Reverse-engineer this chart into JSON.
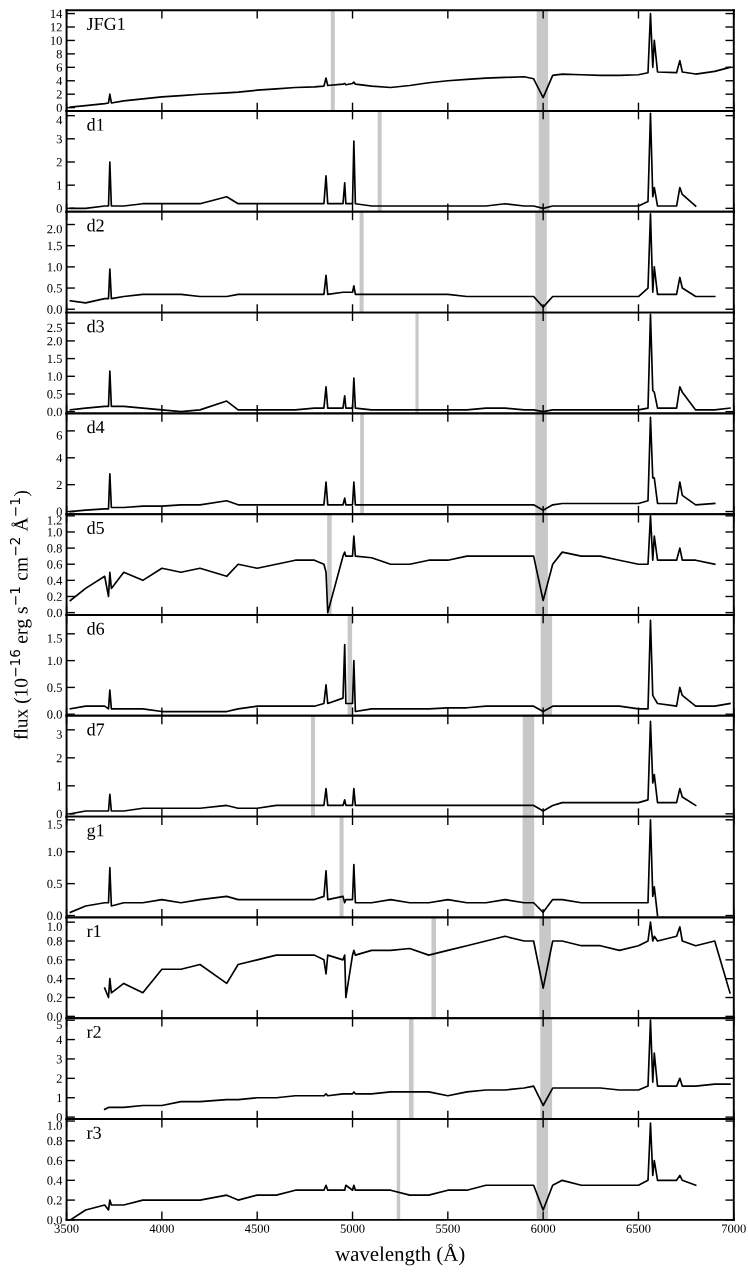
{
  "chart_data": [
    {
      "type": "line",
      "title": "JFG1",
      "xlim": [
        3500,
        7000
      ],
      "xticks": [
        3500,
        4000,
        4500,
        5000,
        5500,
        6000,
        6500,
        7000
      ],
      "ylim": [
        -0.5,
        14.5
      ],
      "yticks": [
        0,
        2,
        4,
        6,
        8,
        10,
        12,
        14
      ],
      "tick_labels": "y",
      "bands": [
        {
          "axis": "x",
          "from": 4886,
          "to": 4907,
          "color": "#c8c8c8"
        },
        {
          "axis": "x",
          "from": 5966,
          "to": 6026,
          "color": "#c8c8c8"
        }
      ],
      "x": [
        3520,
        3600,
        3700,
        3720,
        3727,
        3735,
        3800,
        3900,
        4000,
        4100,
        4200,
        4340,
        4400,
        4500,
        4600,
        4700,
        4800,
        4850,
        4861,
        4870,
        4950,
        4959,
        4965,
        5000,
        5007,
        5015,
        5100,
        5200,
        5300,
        5400,
        5500,
        5600,
        5700,
        5800,
        5900,
        5950,
        6000,
        6050,
        6100,
        6200,
        6300,
        6400,
        6500,
        6550,
        6563,
        6575,
        6583,
        6600,
        6700,
        6717,
        6730,
        6800,
        6900,
        6980
      ],
      "series": [
        {
          "color": "#000000",
          "values": [
            0.1,
            0.3,
            0.6,
            0.7,
            2.0,
            0.7,
            1.0,
            1.3,
            1.6,
            1.8,
            2.0,
            2.2,
            2.3,
            2.6,
            2.8,
            3.0,
            3.1,
            3.2,
            4.4,
            3.3,
            3.5,
            3.6,
            3.4,
            3.6,
            3.8,
            3.5,
            3.2,
            3.0,
            3.3,
            3.7,
            4.0,
            4.2,
            4.4,
            4.5,
            4.6,
            4.3,
            1.5,
            4.8,
            5.0,
            4.9,
            4.8,
            4.8,
            4.9,
            5.2,
            14.0,
            6.0,
            10.0,
            5.3,
            5.2,
            7.0,
            5.3,
            5.0,
            5.4,
            6.0
          ]
        }
      ]
    },
    {
      "type": "line",
      "title": "d1",
      "xlim": [
        3500,
        7000
      ],
      "xticks": [
        3500,
        4000,
        4500,
        5000,
        5500,
        6000,
        6500,
        7000
      ],
      "ylim": [
        -0.15,
        4.2
      ],
      "yticks": [
        0,
        1,
        2,
        3,
        4
      ],
      "tick_labels": "y",
      "bands": [
        {
          "axis": "x",
          "from": 5132,
          "to": 5153,
          "color": "#c8c8c8"
        },
        {
          "axis": "x",
          "from": 5977,
          "to": 6033,
          "color": "#c8c8c8"
        }
      ],
      "x": [
        3520,
        3600,
        3700,
        3720,
        3727,
        3735,
        3800,
        3900,
        4000,
        4100,
        4200,
        4340,
        4400,
        4500,
        4600,
        4700,
        4800,
        4850,
        4861,
        4870,
        4950,
        4959,
        4965,
        5000,
        5007,
        5015,
        5100,
        5200,
        5300,
        5400,
        5500,
        5600,
        5700,
        5800,
        5900,
        5950,
        6000,
        6050,
        6100,
        6200,
        6300,
        6400,
        6500,
        6550,
        6563,
        6575,
        6583,
        6600,
        6700,
        6717,
        6730,
        6800
      ],
      "series": [
        {
          "color": "#000000",
          "values": [
            0.0,
            0.0,
            0.1,
            0.1,
            2.0,
            0.1,
            0.1,
            0.2,
            0.2,
            0.2,
            0.2,
            0.5,
            0.2,
            0.2,
            0.2,
            0.2,
            0.2,
            0.2,
            1.4,
            0.2,
            0.2,
            1.1,
            0.2,
            0.2,
            2.9,
            0.2,
            0.1,
            0.1,
            0.1,
            0.1,
            0.1,
            0.1,
            0.1,
            0.2,
            0.1,
            0.1,
            0.0,
            0.1,
            0.1,
            0.1,
            0.1,
            0.1,
            0.1,
            0.3,
            4.1,
            0.5,
            0.9,
            0.1,
            0.1,
            0.9,
            0.6,
            0.1
          ]
        }
      ]
    },
    {
      "type": "line",
      "title": "d2",
      "xlim": [
        3500,
        7000
      ],
      "xticks": [
        3500,
        4000,
        4500,
        5000,
        5500,
        6000,
        6500,
        7000
      ],
      "ylim": [
        -0.08,
        2.3
      ],
      "yticks": [
        {
          "value": 0,
          "label": "0.0"
        },
        0.5,
        {
          "value": 1,
          "label": "1.0"
        },
        1.5,
        {
          "value": 2,
          "label": "2.0"
        }
      ],
      "tick_labels": "y",
      "bands": [
        {
          "axis": "x",
          "from": 5037,
          "to": 5058,
          "color": "#c8c8c8"
        },
        {
          "axis": "x",
          "from": 5959,
          "to": 6019,
          "color": "#c8c8c8"
        }
      ],
      "x": [
        3520,
        3600,
        3700,
        3720,
        3727,
        3735,
        3800,
        3900,
        4000,
        4100,
        4200,
        4340,
        4400,
        4500,
        4600,
        4700,
        4800,
        4850,
        4861,
        4870,
        4950,
        4959,
        4965,
        5000,
        5007,
        5015,
        5100,
        5200,
        5300,
        5400,
        5500,
        5600,
        5700,
        5800,
        5900,
        5950,
        6000,
        6050,
        6100,
        6200,
        6300,
        6400,
        6500,
        6550,
        6563,
        6575,
        6583,
        6600,
        6700,
        6717,
        6730,
        6800,
        6900
      ],
      "series": [
        {
          "color": "#000000",
          "values": [
            0.2,
            0.15,
            0.25,
            0.25,
            0.95,
            0.25,
            0.3,
            0.35,
            0.35,
            0.35,
            0.3,
            0.3,
            0.35,
            0.35,
            0.35,
            0.35,
            0.35,
            0.35,
            0.8,
            0.35,
            0.4,
            0.4,
            0.4,
            0.4,
            0.55,
            0.35,
            0.35,
            0.35,
            0.35,
            0.35,
            0.35,
            0.3,
            0.3,
            0.3,
            0.3,
            0.3,
            0.05,
            0.3,
            0.3,
            0.3,
            0.3,
            0.3,
            0.3,
            0.5,
            2.25,
            0.4,
            1.0,
            0.35,
            0.35,
            0.75,
            0.5,
            0.3,
            0.3
          ]
        }
      ]
    },
    {
      "type": "line",
      "title": "d3",
      "xlim": [
        3500,
        7000
      ],
      "xticks": [
        3500,
        4000,
        4500,
        5000,
        5500,
        6000,
        6500,
        7000
      ],
      "ylim": [
        -0.05,
        2.8
      ],
      "yticks": [
        {
          "value": 0,
          "label": "0.0"
        },
        0.5,
        {
          "value": 1,
          "label": "1.0"
        },
        1.5,
        {
          "value": 2,
          "label": "2.0"
        },
        2.5
      ],
      "tick_labels": "y",
      "bands": [
        {
          "axis": "x",
          "from": 5330,
          "to": 5347,
          "color": "#c8c8c8"
        },
        {
          "axis": "x",
          "from": 5959,
          "to": 6019,
          "color": "#c8c8c8"
        }
      ],
      "x": [
        3520,
        3600,
        3700,
        3720,
        3727,
        3735,
        3800,
        3900,
        4000,
        4100,
        4200,
        4340,
        4400,
        4500,
        4600,
        4700,
        4800,
        4850,
        4861,
        4870,
        4950,
        4959,
        4965,
        5000,
        5007,
        5015,
        5100,
        5200,
        5300,
        5400,
        5500,
        5600,
        5700,
        5800,
        5900,
        5950,
        6000,
        6050,
        6100,
        6200,
        6300,
        6400,
        6500,
        6550,
        6563,
        6575,
        6583,
        6600,
        6700,
        6717,
        6730,
        6800,
        6900,
        6980
      ],
      "series": [
        {
          "color": "#000000",
          "values": [
            0.05,
            0.1,
            0.15,
            0.15,
            1.15,
            0.15,
            0.15,
            0.1,
            0.05,
            0.0,
            0.05,
            0.3,
            0.05,
            0.05,
            0.05,
            0.05,
            0.1,
            0.1,
            0.7,
            0.1,
            0.1,
            0.45,
            0.1,
            0.1,
            0.95,
            0.1,
            0.05,
            0.05,
            0.05,
            0.05,
            0.05,
            0.05,
            0.1,
            0.1,
            0.05,
            0.05,
            0.0,
            0.05,
            0.05,
            0.05,
            0.05,
            0.05,
            0.05,
            0.1,
            2.75,
            0.6,
            0.55,
            0.1,
            0.1,
            0.7,
            0.55,
            0.05,
            0.05,
            0.1
          ]
        }
      ]
    },
    {
      "type": "line",
      "title": "d4",
      "xlim": [
        3500,
        7000
      ],
      "xticks": [
        3500,
        4000,
        4500,
        5000,
        5500,
        6000,
        6500,
        7000
      ],
      "ylim": [
        -0.2,
        7.3
      ],
      "yticks": [
        0,
        2,
        4,
        6
      ],
      "tick_labels": "y",
      "bands": [
        {
          "axis": "x",
          "from": 5040,
          "to": 5060,
          "color": "#c8c8c8"
        },
        {
          "axis": "x",
          "from": 5959,
          "to": 6019,
          "color": "#c8c8c8"
        }
      ],
      "x": [
        3520,
        3600,
        3700,
        3720,
        3727,
        3735,
        3800,
        3900,
        4000,
        4100,
        4200,
        4340,
        4400,
        4500,
        4600,
        4700,
        4800,
        4850,
        4861,
        4870,
        4950,
        4959,
        4965,
        5000,
        5007,
        5015,
        5100,
        5200,
        5300,
        5400,
        5500,
        5600,
        5700,
        5800,
        5900,
        5950,
        6000,
        6050,
        6100,
        6200,
        6300,
        6400,
        6500,
        6550,
        6563,
        6575,
        6583,
        6600,
        6700,
        6717,
        6730,
        6800,
        6900
      ],
      "series": [
        {
          "color": "#000000",
          "values": [
            0.0,
            0.1,
            0.2,
            0.2,
            2.8,
            0.3,
            0.3,
            0.4,
            0.4,
            0.5,
            0.5,
            0.8,
            0.5,
            0.5,
            0.5,
            0.5,
            0.5,
            0.5,
            2.2,
            0.5,
            0.5,
            1.0,
            0.5,
            0.5,
            2.2,
            0.5,
            0.5,
            0.5,
            0.5,
            0.5,
            0.5,
            0.5,
            0.5,
            0.5,
            0.5,
            0.5,
            0.1,
            0.5,
            0.6,
            0.6,
            0.6,
            0.6,
            0.6,
            0.8,
            7.0,
            2.5,
            2.5,
            0.6,
            0.6,
            2.2,
            1.2,
            0.5,
            0.6
          ]
        }
      ]
    },
    {
      "type": "line",
      "title": "d5",
      "xlim": [
        3500,
        7000
      ],
      "xticks": [
        3500,
        4000,
        4500,
        5000,
        5500,
        6000,
        6500,
        7000
      ],
      "ylim": [
        -0.03,
        1.22
      ],
      "yticks": [
        {
          "value": 0,
          "label": "0.0"
        },
        0.2,
        0.4,
        0.6,
        0.8,
        {
          "value": 1,
          "label": "1.0"
        },
        1.2
      ],
      "tick_labels": "y",
      "bands": [
        {
          "axis": "x",
          "from": 4867,
          "to": 4891,
          "color": "#c8c8c8"
        },
        {
          "axis": "x",
          "from": 5959,
          "to": 6025,
          "color": "#c8c8c8"
        }
      ],
      "x": [
        3520,
        3600,
        3700,
        3720,
        3727,
        3735,
        3800,
        3900,
        4000,
        4100,
        4200,
        4340,
        4400,
        4500,
        4600,
        4700,
        4800,
        4850,
        4861,
        4870,
        4950,
        4959,
        4965,
        5000,
        5007,
        5015,
        5100,
        5200,
        5300,
        5400,
        5500,
        5600,
        5700,
        5800,
        5900,
        5950,
        6000,
        6050,
        6100,
        6200,
        6300,
        6400,
        6500,
        6550,
        6563,
        6575,
        6583,
        6600,
        6700,
        6717,
        6730,
        6800,
        6900
      ],
      "series": [
        {
          "color": "#000000",
          "values": [
            0.15,
            0.3,
            0.45,
            0.2,
            0.5,
            0.3,
            0.5,
            0.4,
            0.55,
            0.5,
            0.55,
            0.45,
            0.6,
            0.55,
            0.6,
            0.65,
            0.65,
            0.6,
            0.5,
            0.0,
            0.7,
            0.75,
            0.7,
            0.7,
            0.95,
            0.7,
            0.68,
            0.6,
            0.6,
            0.65,
            0.65,
            0.7,
            0.7,
            0.7,
            0.7,
            0.7,
            0.15,
            0.6,
            0.75,
            0.7,
            0.7,
            0.65,
            0.6,
            0.6,
            1.2,
            0.65,
            0.95,
            0.65,
            0.65,
            0.8,
            0.65,
            0.65,
            0.6
          ]
        }
      ]
    },
    {
      "type": "line",
      "title": "d6",
      "ylabel": "flux (10$^{−16}$ erg s$^{−1}$ cm$^{−2}$ Å$^{−1}$)",
      "xlim": [
        3500,
        7000
      ],
      "xticks": [
        3500,
        4000,
        4500,
        5000,
        5500,
        6000,
        6500,
        7000
      ],
      "ylim": [
        -0.03,
        1.85
      ],
      "yticks": [
        {
          "value": 0,
          "label": "0.0"
        },
        0.5,
        {
          "value": 1,
          "label": "1.0"
        },
        1.5
      ],
      "tick_labels": "y",
      "bands": [
        {
          "axis": "x",
          "from": 4974,
          "to": 4998,
          "color": "#c8c8c8"
        },
        {
          "axis": "x",
          "from": 5987,
          "to": 6047,
          "color": "#c8c8c8"
        }
      ],
      "x": [
        3520,
        3600,
        3700,
        3720,
        3727,
        3735,
        3800,
        3900,
        4000,
        4100,
        4200,
        4340,
        4400,
        4500,
        4600,
        4700,
        4800,
        4850,
        4861,
        4870,
        4950,
        4959,
        4965,
        5000,
        5007,
        5015,
        5100,
        5200,
        5300,
        5400,
        5500,
        5600,
        5700,
        5800,
        5900,
        5950,
        6000,
        6050,
        6100,
        6200,
        6300,
        6400,
        6500,
        6550,
        6563,
        6575,
        6583,
        6600,
        6700,
        6717,
        6730,
        6800,
        6900,
        6980
      ],
      "series": [
        {
          "color": "#000000",
          "values": [
            0.1,
            0.15,
            0.15,
            0.1,
            0.45,
            0.1,
            0.1,
            0.1,
            0.05,
            0.05,
            0.05,
            0.05,
            0.1,
            0.15,
            0.15,
            0.15,
            0.15,
            0.2,
            0.55,
            0.2,
            0.3,
            1.3,
            0.2,
            0.2,
            1.0,
            0.05,
            0.1,
            0.1,
            0.1,
            0.1,
            0.12,
            0.12,
            0.15,
            0.15,
            0.15,
            0.15,
            0.05,
            0.15,
            0.15,
            0.15,
            0.15,
            0.15,
            0.1,
            0.1,
            1.75,
            0.35,
            0.3,
            0.2,
            0.15,
            0.5,
            0.35,
            0.15,
            0.15,
            0.2
          ]
        }
      ]
    },
    {
      "type": "line",
      "title": "d7",
      "xlim": [
        3500,
        7000
      ],
      "xticks": [
        3500,
        4000,
        4500,
        5000,
        5500,
        6000,
        6500,
        7000
      ],
      "ylim": [
        -0.1,
        3.5
      ],
      "yticks": [
        0,
        1,
        2,
        3
      ],
      "tick_labels": "y",
      "bands": [
        {
          "axis": "x",
          "from": 4782,
          "to": 4803,
          "color": "#c8c8c8"
        },
        {
          "axis": "x",
          "from": 5893,
          "to": 5953,
          "color": "#c8c8c8"
        }
      ],
      "x": [
        3520,
        3600,
        3700,
        3720,
        3727,
        3735,
        3800,
        3900,
        4000,
        4100,
        4200,
        4340,
        4400,
        4500,
        4600,
        4700,
        4800,
        4850,
        4861,
        4870,
        4950,
        4959,
        4965,
        5000,
        5007,
        5015,
        5100,
        5200,
        5300,
        5400,
        5500,
        5600,
        5700,
        5800,
        5900,
        5950,
        6000,
        6050,
        6100,
        6200,
        6300,
        6400,
        6500,
        6550,
        6563,
        6575,
        6583,
        6600,
        6700,
        6717,
        6730,
        6800
      ],
      "series": [
        {
          "color": "#000000",
          "values": [
            0.0,
            0.1,
            0.1,
            0.1,
            0.7,
            0.1,
            0.1,
            0.2,
            0.2,
            0.2,
            0.2,
            0.3,
            0.2,
            0.2,
            0.3,
            0.3,
            0.3,
            0.3,
            0.9,
            0.3,
            0.3,
            0.5,
            0.3,
            0.3,
            0.9,
            0.3,
            0.3,
            0.3,
            0.3,
            0.3,
            0.3,
            0.3,
            0.3,
            0.3,
            0.3,
            0.3,
            0.1,
            0.3,
            0.4,
            0.4,
            0.4,
            0.4,
            0.4,
            0.5,
            3.3,
            1.1,
            1.4,
            0.4,
            0.4,
            0.9,
            0.6,
            0.3
          ]
        }
      ]
    },
    {
      "type": "line",
      "title": "g1",
      "xlim": [
        3500,
        7000
      ],
      "xticks": [
        3500,
        4000,
        4500,
        5000,
        5500,
        6000,
        6500,
        7000
      ],
      "ylim": [
        -0.03,
        1.55
      ],
      "yticks": [
        {
          "value": 0,
          "label": "0.0"
        },
        0.5,
        {
          "value": 1,
          "label": "1.0"
        },
        1.5
      ],
      "tick_labels": "y",
      "bands": [
        {
          "axis": "x",
          "from": 4932,
          "to": 4953,
          "color": "#c8c8c8"
        },
        {
          "axis": "x",
          "from": 5892,
          "to": 5953,
          "color": "#c8c8c8"
        }
      ],
      "x": [
        3520,
        3600,
        3700,
        3720,
        3727,
        3735,
        3800,
        3900,
        4000,
        4100,
        4200,
        4340,
        4400,
        4500,
        4600,
        4700,
        4800,
        4850,
        4861,
        4870,
        4950,
        4959,
        4965,
        5000,
        5007,
        5015,
        5100,
        5200,
        5300,
        5400,
        5500,
        5600,
        5700,
        5800,
        5900,
        5950,
        6000,
        6050,
        6100,
        6200,
        6300,
        6400,
        6500,
        6550,
        6563,
        6575,
        6583,
        6600
      ],
      "series": [
        {
          "color": "#000000",
          "values": [
            0.05,
            0.15,
            0.2,
            0.2,
            0.75,
            0.15,
            0.2,
            0.2,
            0.25,
            0.2,
            0.25,
            0.3,
            0.25,
            0.25,
            0.25,
            0.25,
            0.25,
            0.3,
            0.7,
            0.25,
            0.3,
            0.2,
            0.25,
            0.25,
            0.8,
            0.2,
            0.2,
            0.25,
            0.2,
            0.2,
            0.25,
            0.2,
            0.2,
            0.25,
            0.2,
            0.2,
            0.05,
            0.25,
            0.25,
            0.2,
            0.2,
            0.2,
            0.2,
            0.2,
            1.5,
            0.3,
            0.45,
            0.0
          ]
        }
      ]
    },
    {
      "type": "line",
      "title": "r1",
      "xlim": [
        3500,
        7000
      ],
      "xticks": [
        3500,
        4000,
        4500,
        5000,
        5500,
        6000,
        6500,
        7000
      ],
      "ylim": [
        -0.02,
        1.05
      ],
      "yticks": [
        {
          "value": 0,
          "label": "0.0"
        },
        0.2,
        0.4,
        0.6,
        0.8,
        {
          "value": 1,
          "label": "1.0"
        }
      ],
      "tick_labels": "y",
      "bands": [
        {
          "axis": "x",
          "from": 5414,
          "to": 5438,
          "color": "#c8c8c8"
        },
        {
          "axis": "x",
          "from": 5980,
          "to": 6040,
          "color": "#c8c8c8"
        }
      ],
      "x": [
        3700,
        3720,
        3727,
        3735,
        3800,
        3900,
        4000,
        4100,
        4200,
        4340,
        4400,
        4500,
        4600,
        4700,
        4800,
        4850,
        4861,
        4870,
        4950,
        4959,
        4965,
        5000,
        5007,
        5015,
        5100,
        5200,
        5300,
        5400,
        5500,
        5600,
        5700,
        5800,
        5900,
        5950,
        6000,
        6050,
        6100,
        6200,
        6300,
        6400,
        6500,
        6550,
        6563,
        6575,
        6583,
        6600,
        6700,
        6717,
        6730,
        6800,
        6900,
        6980
      ],
      "series": [
        {
          "color": "#000000",
          "values": [
            0.3,
            0.2,
            0.4,
            0.25,
            0.35,
            0.25,
            0.5,
            0.5,
            0.55,
            0.35,
            0.55,
            0.6,
            0.65,
            0.65,
            0.65,
            0.6,
            0.45,
            0.65,
            0.6,
            0.65,
            0.2,
            0.65,
            0.7,
            0.65,
            0.7,
            0.7,
            0.72,
            0.65,
            0.7,
            0.75,
            0.8,
            0.85,
            0.8,
            0.8,
            0.3,
            0.8,
            0.8,
            0.75,
            0.75,
            0.7,
            0.75,
            0.8,
            1.0,
            0.8,
            0.85,
            0.8,
            0.85,
            0.95,
            0.8,
            0.75,
            0.8,
            0.25
          ]
        }
      ]
    },
    {
      "type": "line",
      "title": "r2",
      "xlim": [
        3500,
        7000
      ],
      "xticks": [
        3500,
        4000,
        4500,
        5000,
        5500,
        6000,
        6500,
        7000
      ],
      "ylim": [
        -0.1,
        5.1
      ],
      "yticks": [
        0,
        1,
        2,
        3,
        4,
        5
      ],
      "tick_labels": "y",
      "bands": [
        {
          "axis": "x",
          "from": 5296,
          "to": 5320,
          "color": "#c8c8c8"
        },
        {
          "axis": "x",
          "from": 5985,
          "to": 6047,
          "color": "#c8c8c8"
        }
      ],
      "x": [
        3700,
        3720,
        3727,
        3735,
        3800,
        3900,
        4000,
        4100,
        4200,
        4340,
        4400,
        4500,
        4600,
        4700,
        4800,
        4850,
        4861,
        4870,
        4950,
        4959,
        4965,
        5000,
        5007,
        5015,
        5100,
        5200,
        5300,
        5400,
        5500,
        5600,
        5700,
        5800,
        5900,
        5950,
        6000,
        6050,
        6100,
        6200,
        6300,
        6400,
        6500,
        6550,
        6563,
        6575,
        6583,
        6600,
        6700,
        6717,
        6730,
        6800,
        6900,
        6980
      ],
      "series": [
        {
          "color": "#000000",
          "values": [
            0.4,
            0.5,
            0.5,
            0.5,
            0.5,
            0.6,
            0.6,
            0.8,
            0.8,
            0.9,
            0.9,
            1.0,
            1.0,
            1.1,
            1.1,
            1.1,
            1.2,
            1.1,
            1.2,
            1.2,
            1.2,
            1.2,
            1.3,
            1.2,
            1.2,
            1.3,
            1.3,
            1.3,
            1.1,
            1.3,
            1.4,
            1.4,
            1.5,
            1.6,
            0.6,
            1.5,
            1.5,
            1.5,
            1.5,
            1.4,
            1.4,
            1.6,
            5.0,
            1.8,
            3.3,
            1.6,
            1.6,
            2.0,
            1.6,
            1.6,
            1.7,
            1.7
          ]
        }
      ]
    },
    {
      "type": "line",
      "title": "r3",
      "xlabel": "wavelength (Å)",
      "xlim": [
        3500,
        7000
      ],
      "xticks": [
        3500,
        4000,
        4500,
        5000,
        5500,
        6000,
        6500,
        7000
      ],
      "ylim": [
        0,
        1.02
      ],
      "yticks": [
        {
          "value": 0,
          "label": "0.0"
        },
        0.2,
        0.4,
        0.6,
        0.8,
        {
          "value": 1,
          "label": "1.0"
        }
      ],
      "bands": [
        {
          "axis": "x",
          "from": 5232,
          "to": 5250,
          "color": "#c8c8c8"
        },
        {
          "axis": "x",
          "from": 5966,
          "to": 6026,
          "color": "#c8c8c8"
        }
      ],
      "x": [
        3520,
        3600,
        3700,
        3720,
        3727,
        3735,
        3800,
        3900,
        4000,
        4100,
        4200,
        4340,
        4400,
        4500,
        4600,
        4700,
        4800,
        4850,
        4861,
        4870,
        4950,
        4959,
        4965,
        5000,
        5007,
        5015,
        5100,
        5200,
        5300,
        5400,
        5500,
        5600,
        5700,
        5800,
        5900,
        5950,
        6000,
        6050,
        6100,
        6200,
        6300,
        6400,
        6500,
        6550,
        6563,
        6575,
        6583,
        6600,
        6700,
        6717,
        6730,
        6800
      ],
      "series": [
        {
          "color": "#000000",
          "values": [
            0.0,
            0.1,
            0.15,
            0.1,
            0.2,
            0.15,
            0.15,
            0.2,
            0.2,
            0.2,
            0.2,
            0.25,
            0.2,
            0.25,
            0.25,
            0.3,
            0.3,
            0.3,
            0.35,
            0.3,
            0.3,
            0.3,
            0.35,
            0.3,
            0.35,
            0.3,
            0.3,
            0.3,
            0.25,
            0.25,
            0.3,
            0.3,
            0.35,
            0.35,
            0.35,
            0.35,
            0.1,
            0.35,
            0.4,
            0.35,
            0.35,
            0.35,
            0.35,
            0.4,
            0.98,
            0.45,
            0.6,
            0.4,
            0.4,
            0.45,
            0.4,
            0.35
          ]
        }
      ]
    }
  ]
}
